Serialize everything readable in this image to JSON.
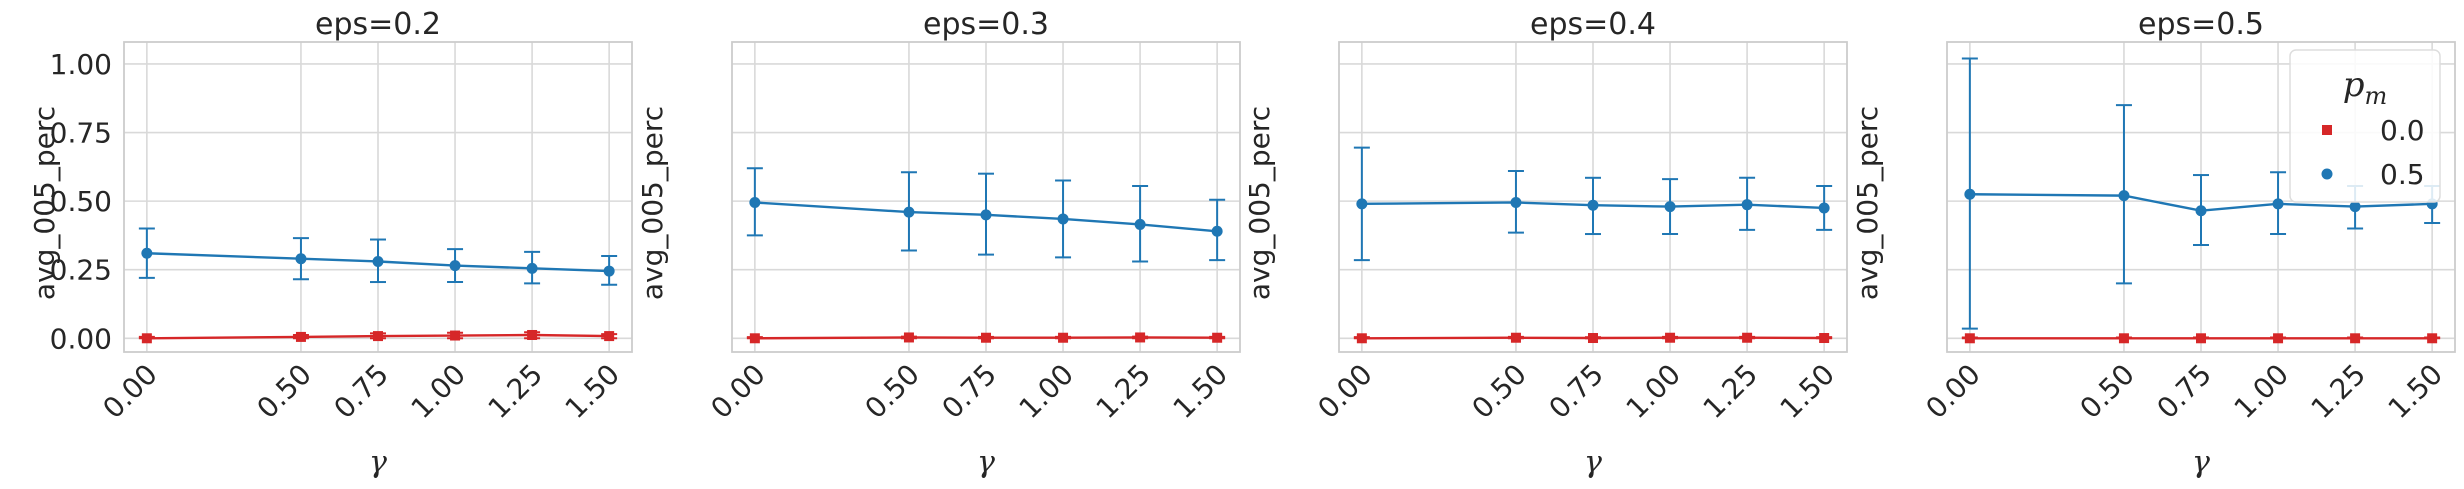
{
  "chart_data": {
    "type": "line",
    "layout": "1x4 facets, shared y-axis",
    "ylabel": "avg_005_perc",
    "xlabel": "γ",
    "x": [
      0.0,
      0.5,
      0.75,
      1.0,
      1.25,
      1.5
    ],
    "x_tick_labels": [
      "0.00",
      "0.50",
      "0.75",
      "1.00",
      "1.25",
      "1.50"
    ],
    "ylim": [
      -0.05,
      1.08
    ],
    "y_ticks": [
      0.0,
      0.25,
      0.5,
      0.75,
      1.0
    ],
    "y_tick_labels": [
      "0.00",
      "0.25",
      "0.50",
      "0.75",
      "1.00"
    ],
    "grid": true,
    "legend": {
      "title": "p_m",
      "title_base": "p",
      "title_sub": "m",
      "placement": "top-right of last panel",
      "entries": [
        {
          "label": "0.0",
          "color": "#d62728",
          "marker": "square"
        },
        {
          "label": "0.5",
          "color": "#1f77b4",
          "marker": "circle"
        }
      ]
    },
    "panels": [
      {
        "title": "eps=0.2",
        "series": [
          {
            "name": "0.0",
            "color": "#d62728",
            "values": [
              0.0,
              0.005,
              0.008,
              0.01,
              0.012,
              0.008
            ],
            "err_low": [
              0.0,
              0.0,
              0.0,
              0.0,
              0.0,
              0.0
            ],
            "err_high": [
              0.005,
              0.012,
              0.018,
              0.02,
              0.022,
              0.015
            ]
          },
          {
            "name": "0.5",
            "color": "#1f77b4",
            "values": [
              0.31,
              0.29,
              0.28,
              0.265,
              0.255,
              0.245
            ],
            "err_low": [
              0.22,
              0.215,
              0.205,
              0.205,
              0.2,
              0.195
            ],
            "err_high": [
              0.4,
              0.365,
              0.36,
              0.325,
              0.315,
              0.3
            ]
          }
        ]
      },
      {
        "title": "eps=0.3",
        "series": [
          {
            "name": "0.0",
            "color": "#d62728",
            "values": [
              0.0,
              0.003,
              0.002,
              0.002,
              0.003,
              0.002
            ],
            "err_low": [
              0.0,
              0.0,
              0.0,
              0.0,
              0.0,
              0.0
            ],
            "err_high": [
              0.004,
              0.006,
              0.005,
              0.005,
              0.006,
              0.005
            ]
          },
          {
            "name": "0.5",
            "color": "#1f77b4",
            "values": [
              0.495,
              0.46,
              0.45,
              0.435,
              0.415,
              0.39
            ],
            "err_low": [
              0.375,
              0.32,
              0.305,
              0.295,
              0.28,
              0.285
            ],
            "err_high": [
              0.62,
              0.605,
              0.6,
              0.575,
              0.555,
              0.505
            ]
          }
        ]
      },
      {
        "title": "eps=0.4",
        "series": [
          {
            "name": "0.0",
            "color": "#d62728",
            "values": [
              0.0,
              0.002,
              0.001,
              0.002,
              0.002,
              0.001
            ],
            "err_low": [
              0.0,
              0.0,
              0.0,
              0.0,
              0.0,
              0.0
            ],
            "err_high": [
              0.004,
              0.005,
              0.004,
              0.005,
              0.005,
              0.004
            ]
          },
          {
            "name": "0.5",
            "color": "#1f77b4",
            "values": [
              0.49,
              0.495,
              0.485,
              0.48,
              0.487,
              0.475
            ],
            "err_low": [
              0.285,
              0.385,
              0.38,
              0.38,
              0.395,
              0.395
            ],
            "err_high": [
              0.695,
              0.61,
              0.585,
              0.58,
              0.585,
              0.555
            ]
          }
        ]
      },
      {
        "title": "eps=0.5",
        "series": [
          {
            "name": "0.0",
            "color": "#d62728",
            "values": [
              0.0,
              0.0,
              0.0,
              0.0,
              0.0,
              0.0
            ],
            "err_low": [
              0.0,
              0.0,
              0.0,
              0.0,
              0.0,
              0.0
            ],
            "err_high": [
              0.003,
              0.003,
              0.003,
              0.003,
              0.003,
              0.003
            ]
          },
          {
            "name": "0.5",
            "color": "#1f77b4",
            "values": [
              0.525,
              0.52,
              0.465,
              0.49,
              0.48,
              0.49
            ],
            "err_low": [
              0.035,
              0.2,
              0.34,
              0.38,
              0.4,
              0.42
            ],
            "err_high": [
              1.02,
              0.85,
              0.595,
              0.605,
              0.555,
              0.555
            ]
          }
        ]
      }
    ]
  }
}
